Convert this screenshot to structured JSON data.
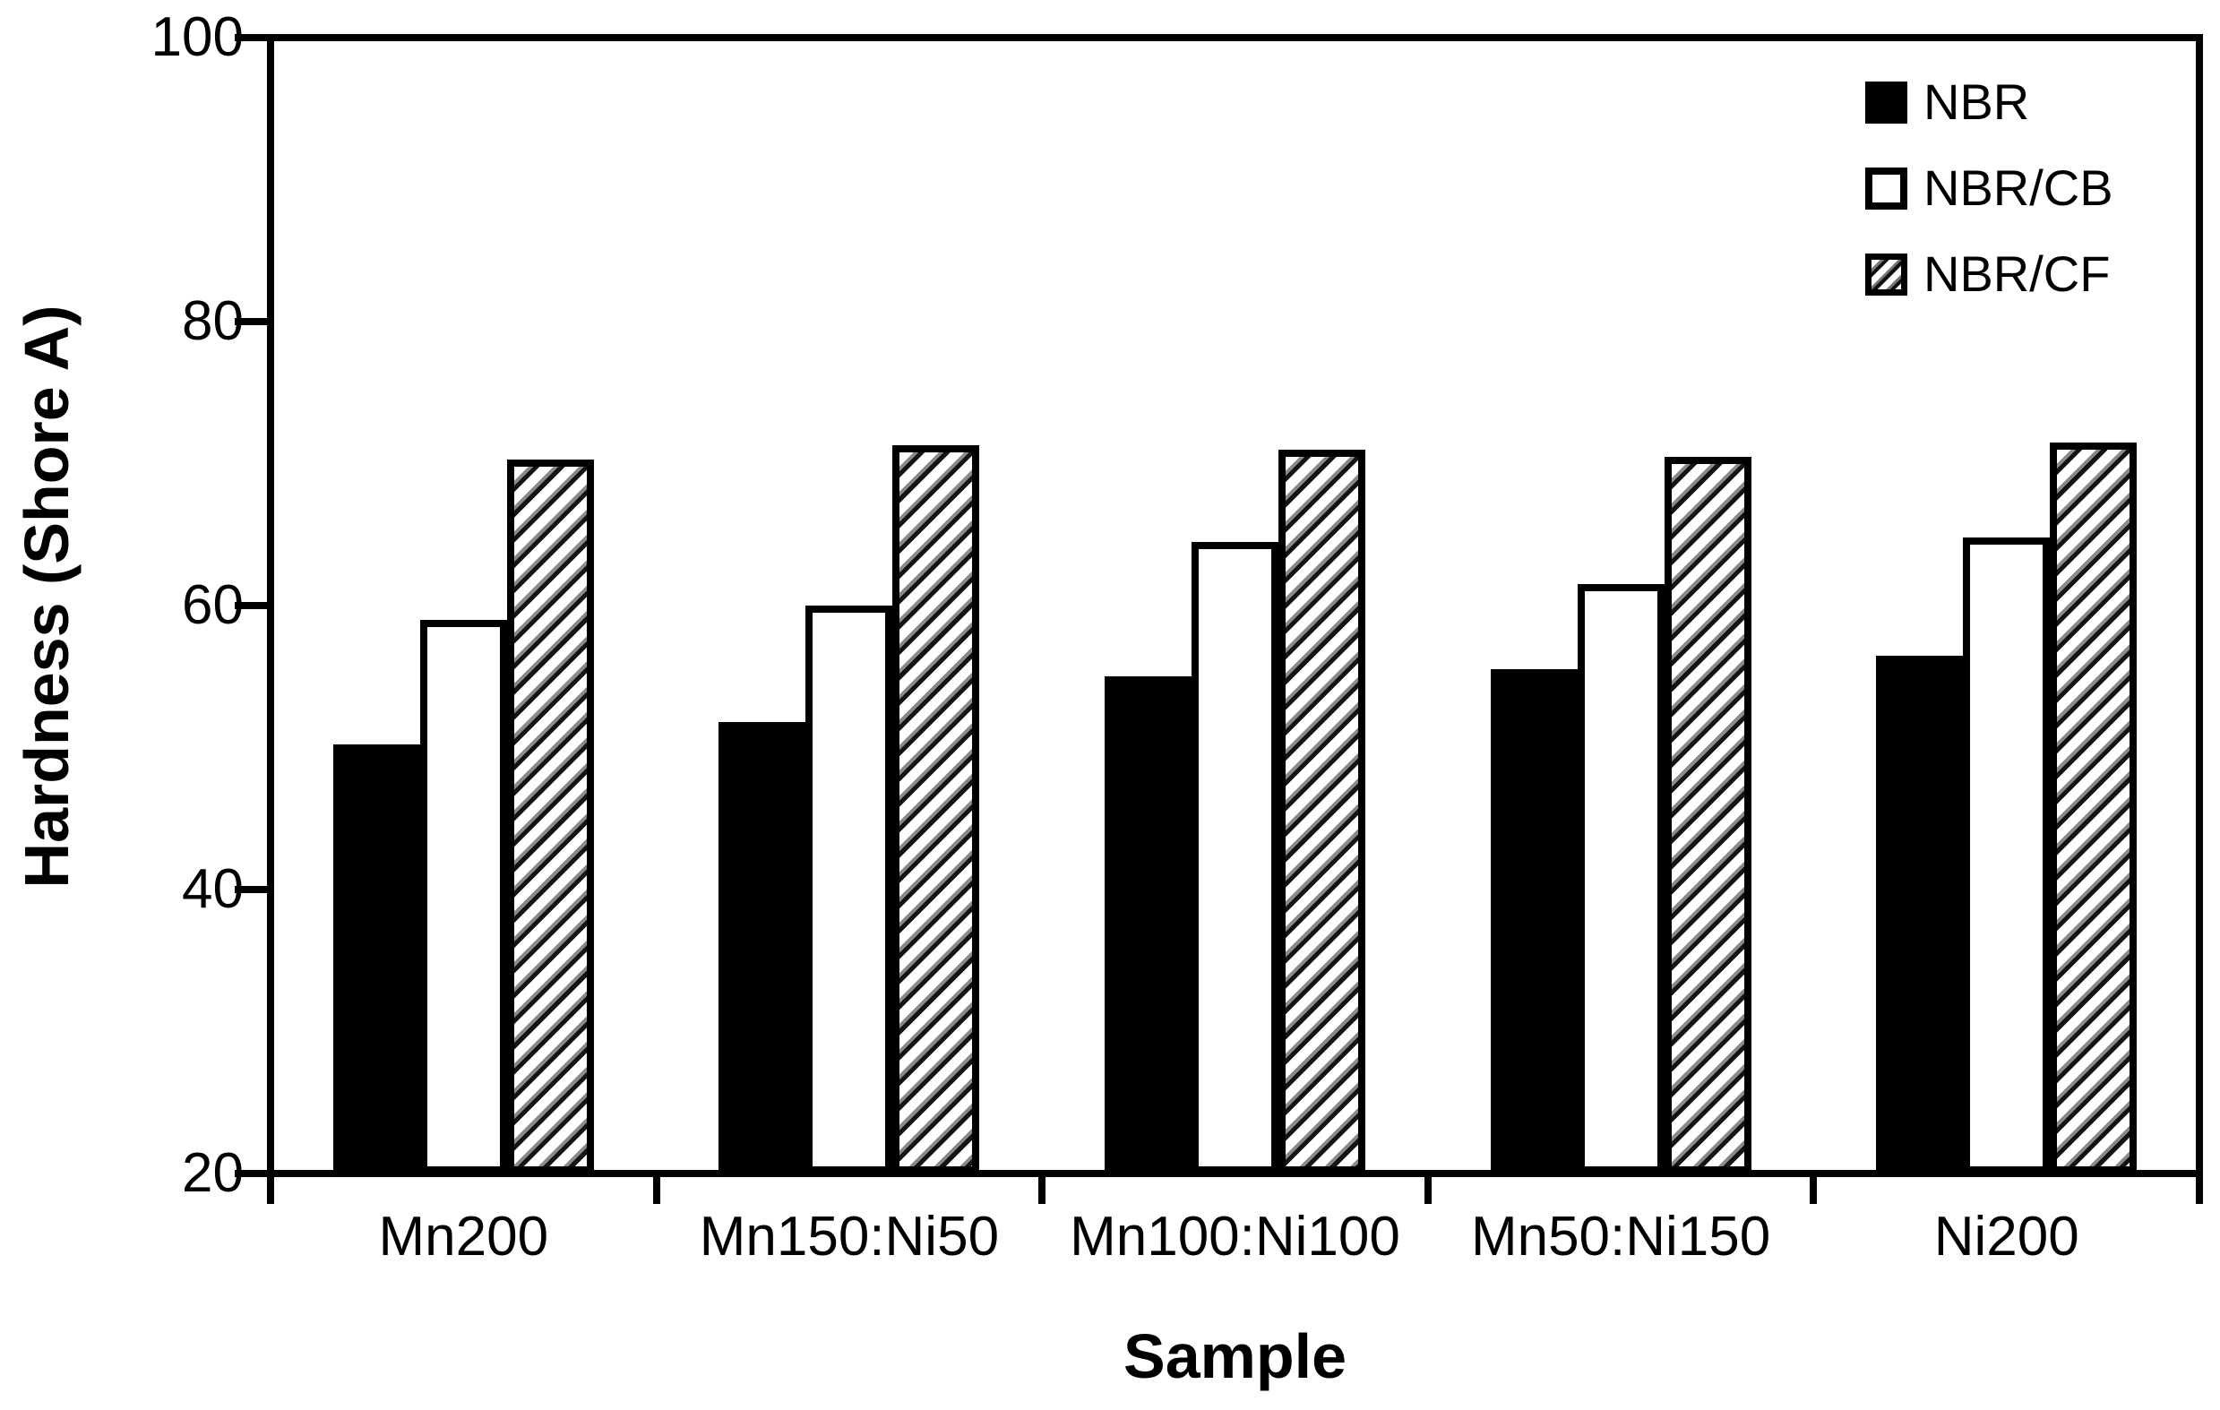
{
  "chart_data": {
    "type": "bar",
    "title": "",
    "xlabel": "Sample",
    "ylabel": "Hardness (Shore A)",
    "ylim": [
      20,
      100
    ],
    "yticks": [
      20,
      40,
      60,
      80,
      100
    ],
    "categories": [
      "Mn200",
      "Mn150:Ni50",
      "Mn100:Ni100",
      "Mn50:Ni150",
      "Ni200"
    ],
    "series": [
      {
        "name": "NBR",
        "style": "solid-black",
        "values": [
          50.2,
          51.8,
          55.0,
          55.5,
          56.5
        ]
      },
      {
        "name": "NBR/CB",
        "style": "white-outlined",
        "values": [
          59.0,
          60.0,
          64.5,
          61.5,
          64.8
        ]
      },
      {
        "name": "NBR/CF",
        "style": "diagonal-hatched",
        "values": [
          70.3,
          71.3,
          71.0,
          70.5,
          71.5
        ]
      }
    ],
    "legend": {
      "position": "top-right",
      "entries": [
        "NBR",
        "NBR/CB",
        "NBR/CF"
      ]
    },
    "grid": false,
    "axis_color": "#000000",
    "background_color": "#ffffff"
  }
}
